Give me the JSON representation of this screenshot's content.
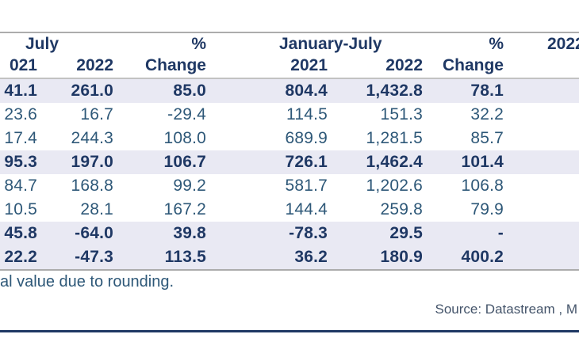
{
  "colors": {
    "header_text": "#1F3864",
    "bold_row_text": "#1F3864",
    "regular_row_text": "#2E5878",
    "row_band": "#E9E9F3",
    "gray_rule": "#ACACAC",
    "navy_rule": "#1F3864",
    "source_text": "#44546A"
  },
  "table": {
    "header": {
      "july": "July",
      "pct_change_top_left": "%",
      "jan_july": "January-July",
      "pct_change_top_right": "%",
      "far_right_year": "2022"
    },
    "subheaders": [
      "021",
      "2022",
      "Change",
      "2021",
      "2022",
      "Change"
    ],
    "rows": [
      {
        "values": [
          "41.1",
          "261.0",
          "85.0",
          "804.4",
          "1,432.8",
          "78.1"
        ],
        "bold": true,
        "shaded": true
      },
      {
        "values": [
          "23.6",
          "16.7",
          "-29.4",
          "114.5",
          "151.3",
          "32.2"
        ],
        "bold": false,
        "shaded": false
      },
      {
        "values": [
          "17.4",
          "244.3",
          "108.0",
          "689.9",
          "1,281.5",
          "85.7"
        ],
        "bold": false,
        "shaded": false
      },
      {
        "values": [
          "95.3",
          "197.0",
          "106.7",
          "726.1",
          "1,462.4",
          "101.4"
        ],
        "bold": true,
        "shaded": true
      },
      {
        "values": [
          "84.7",
          "168.8",
          "99.2",
          "581.7",
          "1,202.6",
          "106.8"
        ],
        "bold": false,
        "shaded": false
      },
      {
        "values": [
          "10.5",
          "28.1",
          "167.2",
          "144.4",
          "259.8",
          "79.9"
        ],
        "bold": false,
        "shaded": false
      },
      {
        "values": [
          "45.8",
          "-64.0",
          "39.8",
          "-78.3",
          "29.5",
          "-"
        ],
        "bold": true,
        "shaded": true
      },
      {
        "values": [
          "22.2",
          "-47.3",
          "113.5",
          "36.2",
          "180.9",
          "400.2"
        ],
        "bold": true,
        "shaded": true
      }
    ]
  },
  "footnote": "al value due to rounding.",
  "source": "Source: Datastream , M"
}
